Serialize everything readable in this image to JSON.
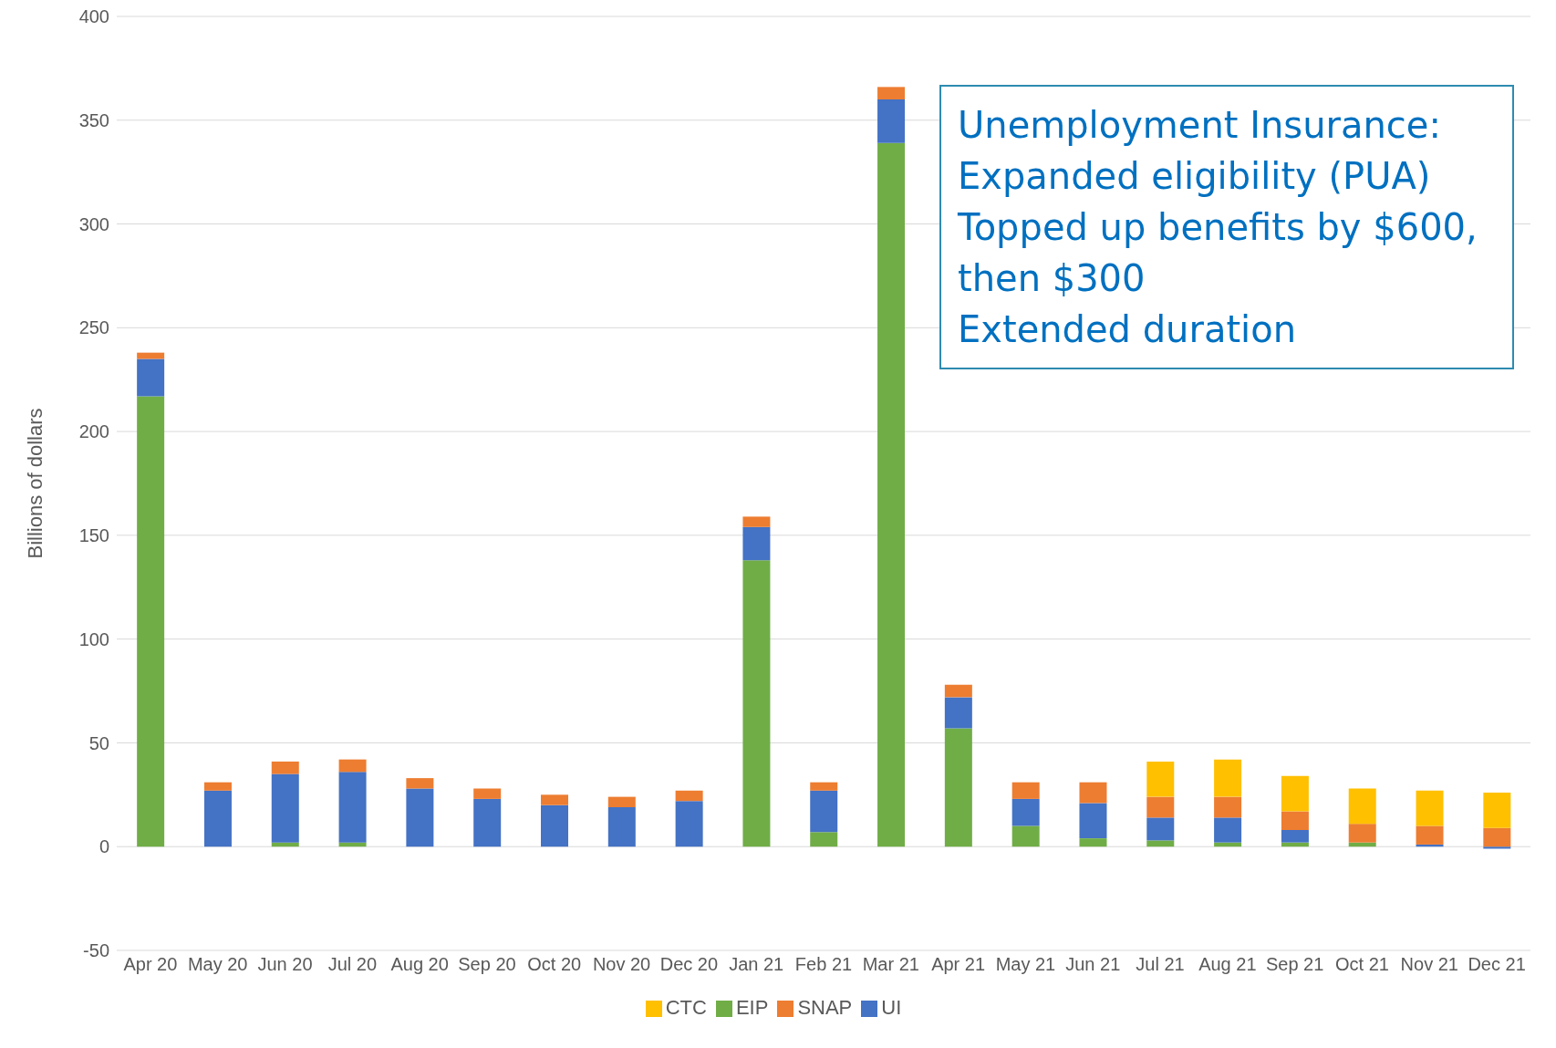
{
  "chart_data": {
    "type": "bar",
    "stacked": true,
    "ylabel": "Billions of dollars",
    "categories": [
      "Apr 20",
      "May 20",
      "Jun 20",
      "Jul 20",
      "Aug 20",
      "Sep 20",
      "Oct 20",
      "Nov 20",
      "Dec 20",
      "Jan 21",
      "Feb 21",
      "Mar 21",
      "Apr 21",
      "May 21",
      "Jun 21",
      "Jul 21",
      "Aug 21",
      "Sep 21",
      "Oct 21",
      "Nov 21",
      "Dec 21"
    ],
    "series": [
      {
        "name": "EIP",
        "color": "#70ad47",
        "values": [
          217,
          0,
          2,
          2,
          0,
          0,
          0,
          0,
          0,
          138,
          7,
          339,
          57,
          10,
          4,
          3,
          2,
          2,
          2,
          0,
          0
        ]
      },
      {
        "name": "UI",
        "color": "#4472c4",
        "values": [
          18,
          27,
          33,
          34,
          28,
          23,
          20,
          19,
          22,
          16,
          20,
          21,
          15,
          13,
          17,
          11,
          12,
          6,
          0,
          1,
          -1
        ]
      },
      {
        "name": "SNAP",
        "color": "#ed7d31",
        "values": [
          3,
          4,
          6,
          6,
          5,
          5,
          5,
          5,
          5,
          5,
          4,
          6,
          6,
          8,
          10,
          10,
          10,
          9,
          9,
          9,
          9
        ]
      },
      {
        "name": "CTC",
        "color": "#ffc000",
        "values": [
          0,
          0,
          0,
          0,
          0,
          0,
          0,
          0,
          0,
          0,
          0,
          0,
          0,
          0,
          0,
          17,
          18,
          17,
          17,
          17,
          17
        ]
      }
    ],
    "ylim": [
      -50,
      400
    ],
    "yticks": [
      -50,
      0,
      50,
      100,
      150,
      200,
      250,
      300,
      350,
      400
    ],
    "grid": "y",
    "legend": "bottom",
    "annotations": [
      "Unemployment Insurance:\nExpanded eligibility (PUA)\nTopped up benefits by $600,\nthen $300\nExtended duration"
    ]
  }
}
